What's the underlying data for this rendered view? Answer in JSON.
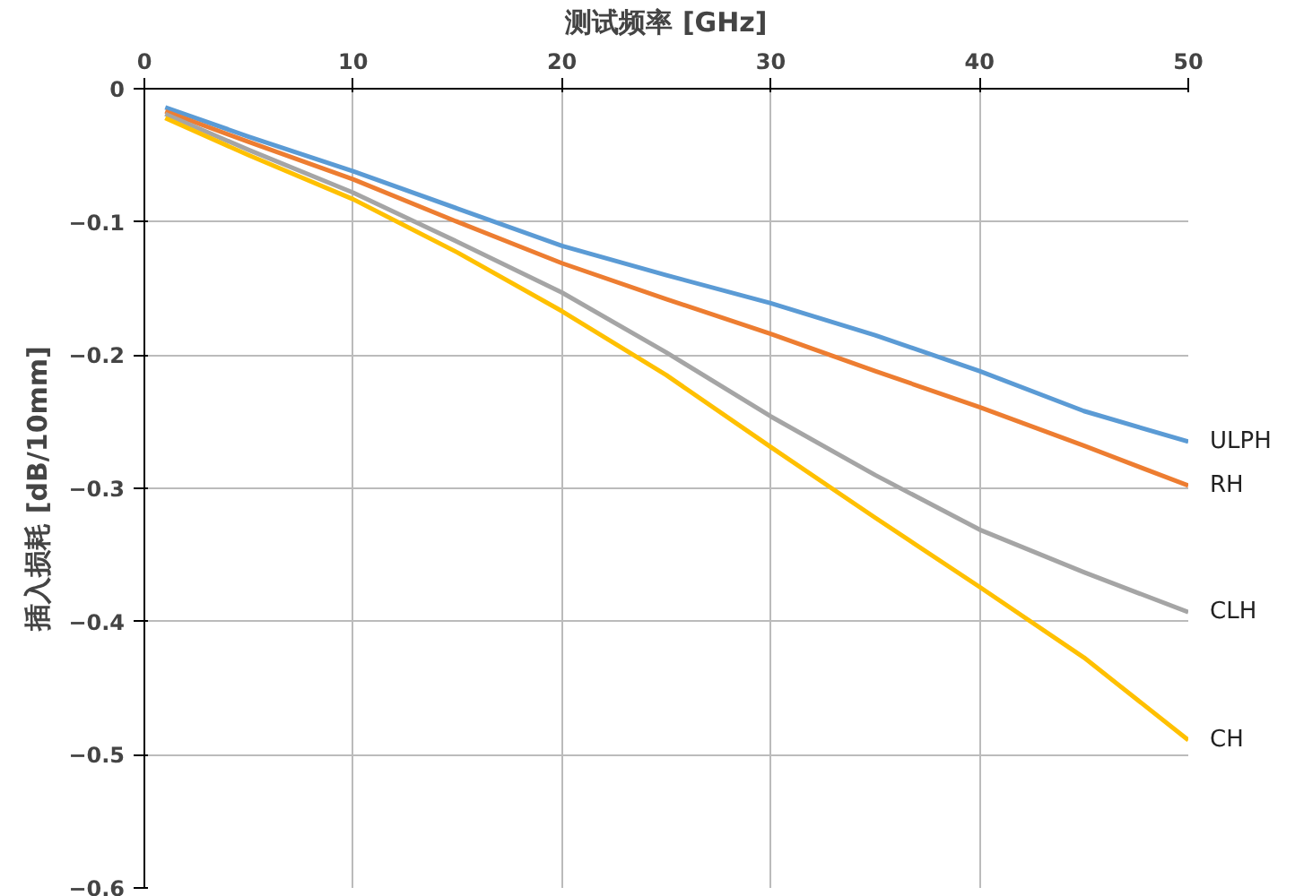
{
  "chart_data": {
    "type": "line",
    "xlabel": "测试频率 [GHz]",
    "ylabel": "插入损耗 [dB/10mm]",
    "x": [
      1,
      5,
      10,
      15,
      20,
      25,
      30,
      35,
      40,
      45,
      50
    ],
    "xlim": [
      0,
      50
    ],
    "xticks": [
      0,
      10,
      20,
      30,
      40,
      50
    ],
    "ylim": [
      -0.6,
      0
    ],
    "yticks": [
      -0.6,
      -0.5,
      -0.4,
      -0.3,
      -0.2,
      -0.1,
      0
    ],
    "grid": true,
    "series": [
      {
        "name": "ULPH",
        "color": "#5b9bd5",
        "values": [
          -0.014,
          -0.036,
          -0.062,
          -0.09,
          -0.118,
          -0.14,
          -0.161,
          -0.185,
          -0.212,
          -0.242,
          -0.265
        ]
      },
      {
        "name": "RH",
        "color": "#ed7d31",
        "values": [
          -0.017,
          -0.04,
          -0.068,
          -0.1,
          -0.131,
          -0.158,
          -0.184,
          -0.212,
          -0.239,
          -0.268,
          -0.298
        ]
      },
      {
        "name": "CLH",
        "color": "#a5a5a5",
        "values": [
          -0.019,
          -0.046,
          -0.078,
          -0.115,
          -0.153,
          -0.198,
          -0.246,
          -0.29,
          -0.331,
          -0.363,
          -0.393
        ]
      },
      {
        "name": "CH",
        "color": "#ffc000",
        "values": [
          -0.022,
          -0.05,
          -0.083,
          -0.123,
          -0.167,
          -0.215,
          -0.269,
          -0.322,
          -0.374,
          -0.427,
          -0.489
        ]
      }
    ]
  }
}
